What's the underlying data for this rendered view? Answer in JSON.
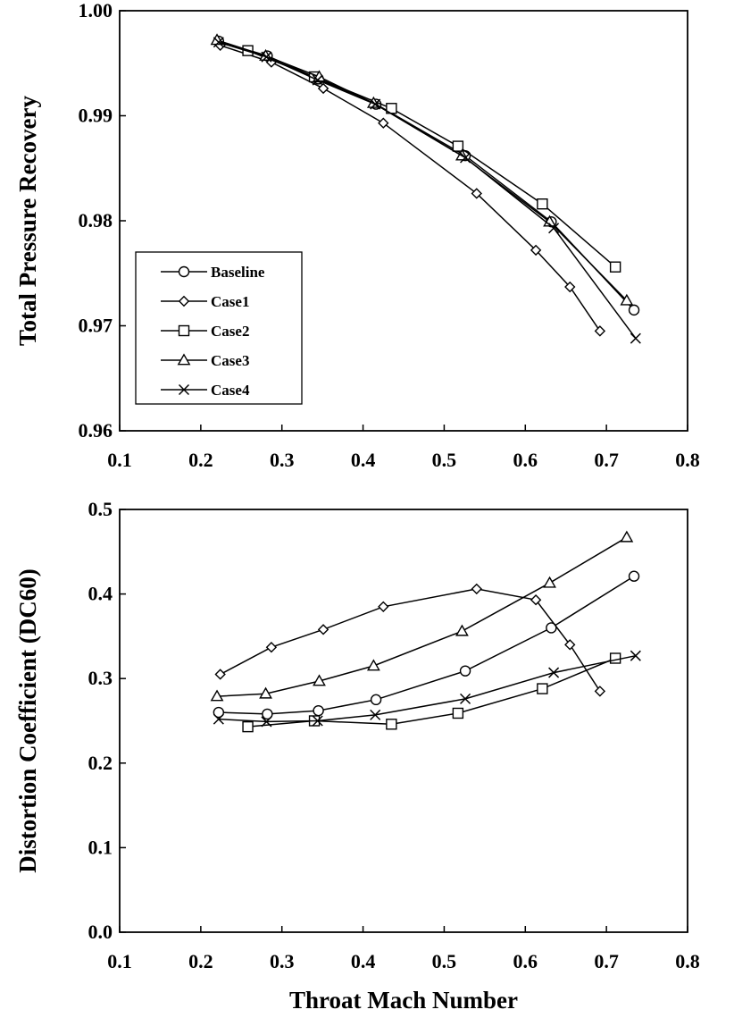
{
  "chart_data": [
    {
      "type": "line",
      "ylabel": "Total Pressure Recovery",
      "xlabel": "",
      "xlim": [
        0.1,
        0.8
      ],
      "ylim": [
        0.96,
        1.0
      ],
      "xticks": [
        "0.1",
        "0.2",
        "0.3",
        "0.4",
        "0.5",
        "0.6",
        "0.7",
        "0.8"
      ],
      "yticks": [
        "0.96",
        "0.97",
        "0.98",
        "0.99",
        "1.00"
      ],
      "legend": {
        "position": "lower-left",
        "entries": [
          "Baseline",
          "Case1",
          "Case2",
          "Case3",
          "Case4"
        ]
      },
      "grid": false,
      "series": [
        {
          "name": "Baseline",
          "marker": "circle",
          "points": [
            [
              0.222,
              0.9971
            ],
            [
              0.282,
              0.9957
            ],
            [
              0.345,
              0.9935
            ],
            [
              0.416,
              0.9911
            ],
            [
              0.526,
              0.9862
            ],
            [
              0.632,
              0.9799
            ],
            [
              0.734,
              0.9715
            ]
          ]
        },
        {
          "name": "Case1",
          "marker": "diamond",
          "points": [
            [
              0.224,
              0.9967
            ],
            [
              0.287,
              0.9951
            ],
            [
              0.351,
              0.9926
            ],
            [
              0.425,
              0.9893
            ],
            [
              0.54,
              0.9826
            ],
            [
              0.613,
              0.9772
            ],
            [
              0.655,
              0.9737
            ],
            [
              0.692,
              0.9695
            ]
          ]
        },
        {
          "name": "Case2",
          "marker": "square",
          "points": [
            [
              0.258,
              0.9962
            ],
            [
              0.34,
              0.9937
            ],
            [
              0.435,
              0.9907
            ],
            [
              0.517,
              0.9871
            ],
            [
              0.621,
              0.9816
            ],
            [
              0.711,
              0.9756
            ]
          ]
        },
        {
          "name": "Case3",
          "marker": "triangle",
          "points": [
            [
              0.22,
              0.9972
            ],
            [
              0.28,
              0.9957
            ],
            [
              0.346,
              0.9937
            ],
            [
              0.413,
              0.9912
            ],
            [
              0.522,
              0.9862
            ],
            [
              0.63,
              0.9799
            ],
            [
              0.725,
              0.9724
            ]
          ]
        },
        {
          "name": "Case4",
          "marker": "x",
          "points": [
            [
              0.222,
              0.997
            ],
            [
              0.281,
              0.9956
            ],
            [
              0.344,
              0.9934
            ],
            [
              0.415,
              0.9911
            ],
            [
              0.526,
              0.986
            ],
            [
              0.635,
              0.9793
            ],
            [
              0.736,
              0.9688
            ]
          ]
        }
      ]
    },
    {
      "type": "line",
      "ylabel": "Distortion Coefficient (DC60)",
      "xlabel": "Throat Mach Number",
      "xlim": [
        0.1,
        0.8
      ],
      "ylim": [
        0.0,
        0.5
      ],
      "xticks": [
        "0.1",
        "0.2",
        "0.3",
        "0.4",
        "0.5",
        "0.6",
        "0.7",
        "0.8"
      ],
      "yticks": [
        "0.0",
        "0.1",
        "0.2",
        "0.3",
        "0.4",
        "0.5"
      ],
      "grid": false,
      "series": [
        {
          "name": "Baseline",
          "marker": "circle",
          "points": [
            [
              0.222,
              0.26
            ],
            [
              0.282,
              0.258
            ],
            [
              0.345,
              0.262
            ],
            [
              0.416,
              0.275
            ],
            [
              0.526,
              0.309
            ],
            [
              0.632,
              0.36
            ],
            [
              0.734,
              0.421
            ]
          ]
        },
        {
          "name": "Case1",
          "marker": "diamond",
          "points": [
            [
              0.224,
              0.305
            ],
            [
              0.287,
              0.337
            ],
            [
              0.351,
              0.358
            ],
            [
              0.425,
              0.385
            ],
            [
              0.54,
              0.406
            ],
            [
              0.613,
              0.393
            ],
            [
              0.655,
              0.34
            ],
            [
              0.692,
              0.285
            ]
          ]
        },
        {
          "name": "Case2",
          "marker": "square",
          "points": [
            [
              0.258,
              0.243
            ],
            [
              0.34,
              0.25
            ],
            [
              0.435,
              0.246
            ],
            [
              0.517,
              0.259
            ],
            [
              0.621,
              0.288
            ],
            [
              0.711,
              0.324
            ]
          ]
        },
        {
          "name": "Case3",
          "marker": "triangle",
          "points": [
            [
              0.22,
              0.279
            ],
            [
              0.28,
              0.282
            ],
            [
              0.346,
              0.297
            ],
            [
              0.413,
              0.315
            ],
            [
              0.522,
              0.356
            ],
            [
              0.63,
              0.413
            ],
            [
              0.725,
              0.467
            ]
          ]
        },
        {
          "name": "Case4",
          "marker": "x",
          "points": [
            [
              0.222,
              0.252
            ],
            [
              0.281,
              0.249
            ],
            [
              0.344,
              0.25
            ],
            [
              0.415,
              0.257
            ],
            [
              0.526,
              0.276
            ],
            [
              0.635,
              0.307
            ],
            [
              0.736,
              0.327
            ]
          ]
        }
      ]
    }
  ]
}
